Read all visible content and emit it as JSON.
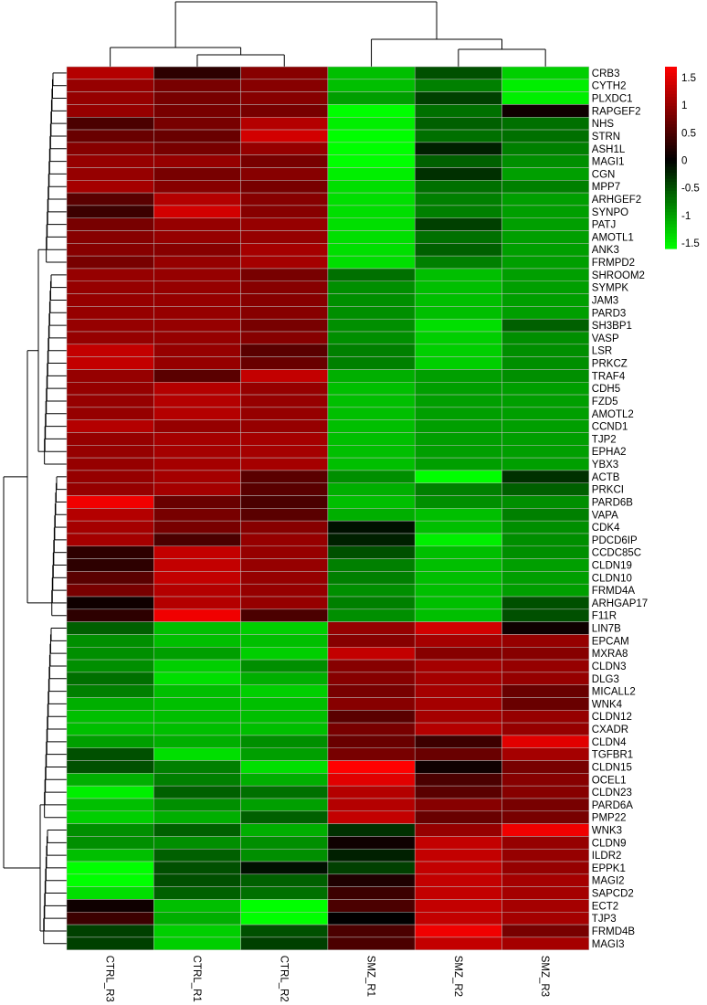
{
  "chart_data": {
    "type": "heatmap",
    "columns": [
      "CTRL_R3",
      "CTRL_R1",
      "CTRL_R2",
      "SMZ_R1",
      "SMZ_R2",
      "SMZ_R3"
    ],
    "rows": [
      "CRB3",
      "CYTH2",
      "PLXDC1",
      "RAPGEF2",
      "NHS",
      "STRN",
      "ASH1L",
      "MAGI1",
      "CGN",
      "MPP7",
      "ARHGEF2",
      "SYNPO",
      "PATJ",
      "AMOTL1",
      "ANK3",
      "FRMPD2",
      "SHROOM2",
      "SYMPK",
      "JAM3",
      "PARD3",
      "SH3BP1",
      "VASP",
      "LSR",
      "PRKCZ",
      "TRAF4",
      "CDH5",
      "FZD5",
      "AMOTL2",
      "CCND1",
      "TJP2",
      "EPHA2",
      "YBX3",
      "ACTB",
      "PRKCI",
      "PARD6B",
      "VAPA",
      "CDK4",
      "PDCD6IP",
      "CCDC85C",
      "CLDN19",
      "CLDN10",
      "FRMD4A",
      "ARHGAP17",
      "F11R",
      "LIN7B",
      "EPCAM",
      "MXRA8",
      "CLDN3",
      "DLG3",
      "MICALL2",
      "WNK4",
      "CLDN12",
      "CXADR",
      "CLDN4",
      "TGFBR1",
      "CLDN15",
      "OCEL1",
      "CLDN23",
      "PARD6A",
      "PMP22",
      "WNK3",
      "CLDN9",
      "ILDR2",
      "EPPK1",
      "MAGI2",
      "SAPCD2",
      "ECT2",
      "TJP3",
      "FRMD4B",
      "MAGI3"
    ],
    "values": [
      [
        1.2,
        0.3,
        0.9,
        -1.2,
        -0.5,
        -1.3
      ],
      [
        1.0,
        0.8,
        0.9,
        -1.2,
        -0.8,
        -1.5
      ],
      [
        1.0,
        0.8,
        0.9,
        -1.0,
        -0.4,
        -1.5
      ],
      [
        1.0,
        0.8,
        0.8,
        -1.6,
        -0.7,
        0.1
      ],
      [
        0.5,
        0.8,
        1.2,
        -1.5,
        -0.6,
        -0.7
      ],
      [
        0.7,
        0.7,
        1.4,
        -1.6,
        -0.7,
        -0.7
      ],
      [
        0.9,
        0.8,
        1.0,
        -1.6,
        -0.2,
        -0.8
      ],
      [
        1.0,
        1.0,
        0.8,
        -1.6,
        -0.6,
        -0.9
      ],
      [
        1.0,
        0.8,
        0.9,
        -1.5,
        -0.3,
        -1.0
      ],
      [
        1.1,
        0.9,
        0.8,
        -1.4,
        -0.7,
        -0.8
      ],
      [
        0.6,
        1.2,
        0.9,
        -1.4,
        -0.8,
        -1.0
      ],
      [
        0.4,
        1.4,
        0.9,
        -1.4,
        -0.8,
        -1.0
      ],
      [
        0.8,
        1.0,
        1.0,
        -1.4,
        -0.4,
        -1.0
      ],
      [
        0.9,
        1.0,
        1.0,
        -1.4,
        -0.7,
        -1.0
      ],
      [
        0.9,
        0.9,
        1.1,
        -1.4,
        -0.6,
        -1.0
      ],
      [
        0.8,
        1.0,
        1.1,
        -1.4,
        -0.8,
        -1.0
      ],
      [
        1.0,
        1.0,
        0.8,
        -0.7,
        -1.2,
        -1.0
      ],
      [
        1.0,
        1.0,
        0.9,
        -0.9,
        -1.2,
        -1.0
      ],
      [
        1.0,
        1.0,
        0.9,
        -0.9,
        -1.2,
        -1.0
      ],
      [
        1.0,
        1.0,
        0.9,
        -0.9,
        -1.2,
        -1.0
      ],
      [
        1.0,
        1.0,
        0.8,
        -0.9,
        -1.4,
        -0.6
      ],
      [
        1.0,
        1.0,
        0.9,
        -0.9,
        -1.3,
        -0.9
      ],
      [
        1.3,
        1.0,
        0.6,
        -0.8,
        -1.3,
        -0.9
      ],
      [
        1.3,
        1.0,
        0.7,
        -0.8,
        -1.3,
        -0.9
      ],
      [
        1.0,
        0.6,
        1.3,
        -1.1,
        -1.0,
        -0.9
      ],
      [
        1.0,
        1.2,
        1.0,
        -1.2,
        -1.0,
        -1.0
      ],
      [
        1.0,
        1.2,
        1.0,
        -1.2,
        -1.0,
        -1.0
      ],
      [
        1.0,
        1.2,
        1.0,
        -1.2,
        -1.0,
        -1.0
      ],
      [
        1.2,
        1.0,
        1.0,
        -1.2,
        -1.0,
        -1.0
      ],
      [
        1.0,
        1.1,
        1.1,
        -1.2,
        -1.0,
        -1.0
      ],
      [
        1.0,
        1.1,
        1.1,
        -1.2,
        -1.0,
        -1.0
      ],
      [
        1.0,
        1.1,
        1.1,
        -1.2,
        -1.0,
        -1.0
      ],
      [
        1.0,
        1.1,
        0.6,
        -0.9,
        -1.6,
        -0.3
      ],
      [
        1.0,
        1.1,
        0.6,
        -1.1,
        -0.8,
        -0.6
      ],
      [
        1.6,
        0.7,
        0.5,
        -1.2,
        -0.9,
        -0.9
      ],
      [
        1.2,
        0.8,
        0.6,
        -1.1,
        -1.2,
        -0.8
      ],
      [
        1.1,
        0.8,
        0.9,
        -0.1,
        -1.2,
        -0.9
      ],
      [
        1.1,
        0.5,
        1.0,
        -0.2,
        -1.5,
        -0.9
      ],
      [
        0.3,
        1.3,
        1.0,
        -0.5,
        -1.2,
        -0.9
      ],
      [
        0.3,
        1.3,
        1.0,
        -0.8,
        -1.2,
        -1.0
      ],
      [
        0.6,
        1.3,
        1.0,
        -0.8,
        -1.2,
        -1.0
      ],
      [
        0.8,
        1.2,
        1.0,
        -0.9,
        -1.2,
        -1.0
      ],
      [
        0.1,
        1.2,
        1.0,
        -0.8,
        -1.2,
        -0.5
      ],
      [
        0.3,
        1.6,
        0.5,
        -0.9,
        -1.2,
        -0.5
      ],
      [
        -0.6,
        -1.2,
        -1.3,
        1.0,
        1.4,
        0.1
      ],
      [
        -0.9,
        -1.2,
        -1.2,
        0.9,
        1.1,
        1.0
      ],
      [
        -0.9,
        -1.0,
        -1.3,
        1.3,
        0.9,
        0.9
      ],
      [
        -0.9,
        -1.3,
        -0.9,
        0.9,
        1.1,
        1.0
      ],
      [
        -0.7,
        -1.4,
        -1.1,
        0.9,
        1.1,
        1.0
      ],
      [
        -0.8,
        -1.2,
        -1.3,
        0.8,
        1.1,
        0.7
      ],
      [
        -1.1,
        -1.2,
        -1.2,
        0.9,
        1.1,
        0.7
      ],
      [
        -1.2,
        -1.2,
        -1.2,
        0.6,
        1.1,
        1.0
      ],
      [
        -1.2,
        -1.2,
        -1.2,
        0.8,
        1.2,
        1.0
      ],
      [
        -1.0,
        -1.1,
        -0.9,
        0.7,
        0.4,
        1.5
      ],
      [
        -0.5,
        -1.4,
        -1.0,
        0.8,
        0.7,
        1.1
      ],
      [
        -0.5,
        -0.8,
        -1.4,
        1.7,
        0.1,
        0.8
      ],
      [
        -1.1,
        -0.8,
        -1.1,
        1.5,
        0.5,
        0.9
      ],
      [
        -1.5,
        -0.6,
        -0.7,
        1.2,
        0.6,
        0.9
      ],
      [
        -1.2,
        -0.9,
        -1.0,
        1.2,
        0.9,
        0.8
      ],
      [
        -1.3,
        -1.1,
        -0.6,
        1.3,
        0.7,
        0.8
      ],
      [
        -0.9,
        -0.6,
        -1.1,
        -0.3,
        1.0,
        1.6
      ],
      [
        -0.9,
        -0.9,
        -0.9,
        0.1,
        1.3,
        1.0
      ],
      [
        -1.2,
        -0.6,
        -0.9,
        -0.2,
        1.3,
        1.0
      ],
      [
        -1.6,
        -0.5,
        -0.1,
        -0.4,
        1.3,
        1.0
      ],
      [
        -1.6,
        -0.5,
        -0.6,
        0.2,
        1.3,
        1.1
      ],
      [
        -1.4,
        -0.6,
        -0.7,
        0.4,
        1.3,
        1.1
      ],
      [
        0.1,
        -1.2,
        -1.6,
        0.5,
        1.3,
        1.1
      ],
      [
        0.4,
        -1.1,
        -1.6,
        0.0,
        1.3,
        1.1
      ],
      [
        -0.4,
        -1.3,
        -0.5,
        0.5,
        1.6,
        0.8
      ],
      [
        -0.4,
        -1.3,
        -0.4,
        0.5,
        1.3,
        1.1
      ]
    ],
    "color_scale": {
      "min": -1.6,
      "max": 1.7,
      "low_color": "#00ff00",
      "mid_color": "#000000",
      "high_color": "#ff0000"
    },
    "legend": {
      "placement": "top-right",
      "ticks": [
        "1.5",
        "1",
        "0.5",
        "0",
        "-0.5",
        "-1",
        "-1.5"
      ],
      "tick_values": [
        1.5,
        1,
        0.5,
        0,
        -0.5,
        -1,
        -1.5
      ]
    },
    "column_dendrogram": true,
    "row_dendrogram": true
  }
}
